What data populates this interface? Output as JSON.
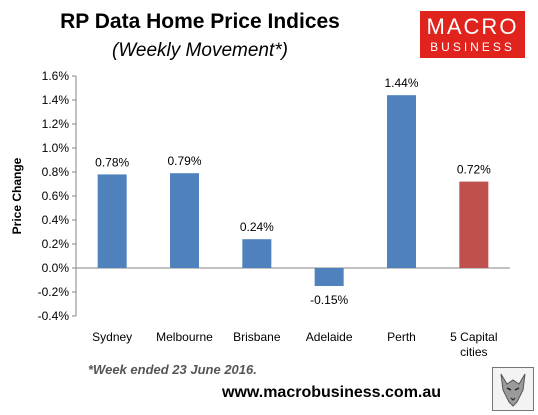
{
  "header": {
    "title": "RP Data Home Price Indices",
    "subtitle": "(Weekly Movement*)"
  },
  "logo": {
    "line1": "MACRO",
    "line2": "BUSINESS"
  },
  "footer": {
    "note": "*Week ended 23 June 2016.",
    "url": "www.macrobusiness.com.au"
  },
  "colors": {
    "primary_bar": "#4f81bd",
    "highlight_bar": "#c0504d",
    "logo_bg": "#e0231d"
  },
  "chart_data": {
    "type": "bar",
    "title": "RP Data Home Price Indices",
    "subtitle": "(Weekly Movement*)",
    "ylabel": "Price Change",
    "xlabel": "",
    "ylim": [
      -0.4,
      1.6
    ],
    "yticks": [
      -0.4,
      -0.2,
      0.0,
      0.2,
      0.4,
      0.6,
      0.8,
      1.0,
      1.2,
      1.4,
      1.6
    ],
    "ytick_labels": [
      "-0.4%",
      "-0.2%",
      "0.0%",
      "0.2%",
      "0.4%",
      "0.6%",
      "0.8%",
      "1.0%",
      "1.2%",
      "1.4%",
      "1.6%"
    ],
    "grid": false,
    "categories": [
      [
        "Sydney"
      ],
      [
        "Melbourne"
      ],
      [
        "Brisbane"
      ],
      [
        "Adelaide"
      ],
      [
        "Perth"
      ],
      [
        "5 Capital",
        "cities"
      ]
    ],
    "values": [
      0.78,
      0.79,
      0.24,
      -0.15,
      1.44,
      0.72
    ],
    "value_labels": [
      "0.78%",
      "0.79%",
      "0.24%",
      "-0.15%",
      "1.44%",
      "0.72%"
    ],
    "bar_colors": [
      "#4f81bd",
      "#4f81bd",
      "#4f81bd",
      "#4f81bd",
      "#4f81bd",
      "#c0504d"
    ]
  }
}
